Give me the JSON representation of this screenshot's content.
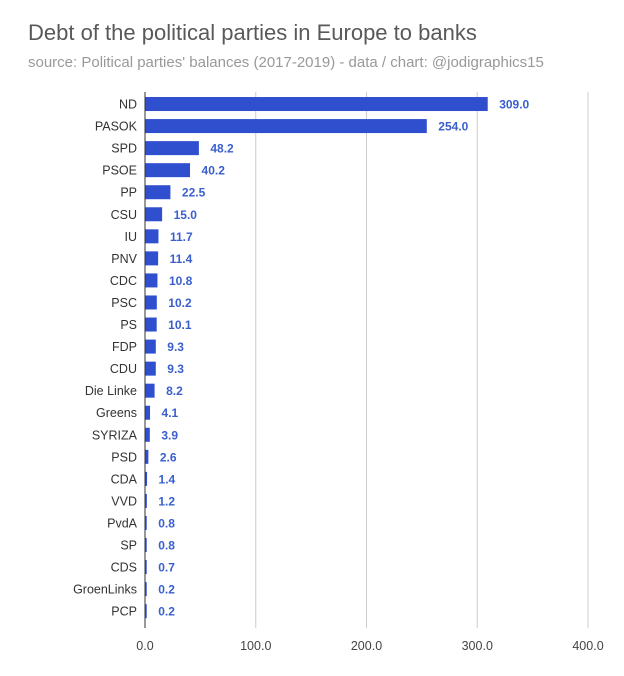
{
  "chart_data": {
    "type": "bar",
    "orientation": "horizontal",
    "title": "Debt of the political parties in Europe to banks",
    "subtitle": "source: Political parties' balances (2017-2019) - data / chart: @jodigraphics15",
    "categories": [
      "ND",
      "PASOK",
      "SPD",
      "PSOE",
      "PP",
      "CSU",
      "IU",
      "PNV",
      "CDC",
      "PSC",
      "PS",
      "FDP",
      "CDU",
      "Die Linke",
      "Greens",
      "SYRIZA",
      "PSD",
      "CDA",
      "VVD",
      "PvdA",
      "SP",
      "CDS",
      "GroenLinks",
      "PCP"
    ],
    "values": [
      309.0,
      254.0,
      48.2,
      40.2,
      22.5,
      15.0,
      11.7,
      11.4,
      10.8,
      10.2,
      10.1,
      9.3,
      9.3,
      8.2,
      4.1,
      3.9,
      2.6,
      1.4,
      1.2,
      0.8,
      0.8,
      0.7,
      0.2,
      0.2
    ],
    "value_labels": [
      "309.0",
      "254.0",
      "48.2",
      "40.2",
      "22.5",
      "15.0",
      "11.7",
      "11.4",
      "10.8",
      "10.2",
      "10.1",
      "9.3",
      "9.3",
      "8.2",
      "4.1",
      "3.9",
      "2.6",
      "1.4",
      "1.2",
      "0.8",
      "0.8",
      "0.7",
      "0.2",
      "0.2"
    ],
    "xlim": [
      0,
      400
    ],
    "xticks": [
      "0.0",
      "100.0",
      "200.0",
      "300.0",
      "400.0"
    ],
    "xtick_values": [
      0,
      100,
      200,
      300,
      400
    ],
    "grid": true,
    "bar_color": "#2f4fcf",
    "label_color": "#3a5fcd"
  }
}
